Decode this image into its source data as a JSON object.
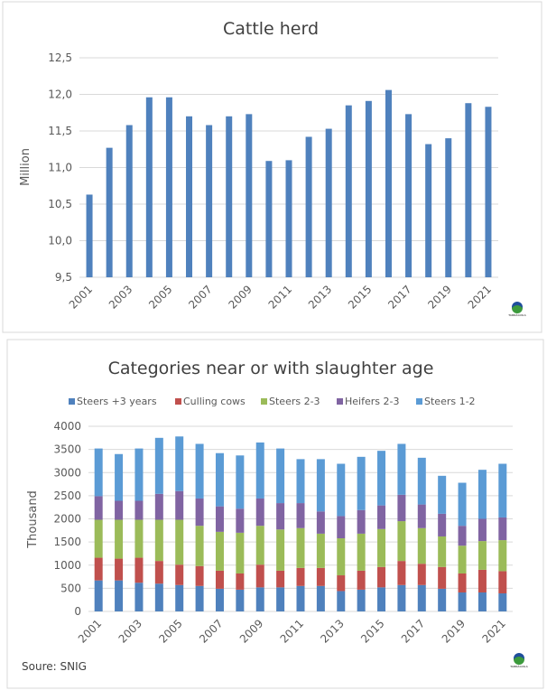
{
  "chart_data": [
    {
      "type": "bar",
      "title": "Cattle herd",
      "xlabel": "",
      "ylabel": "Million",
      "ylim": [
        9.5,
        12.5
      ],
      "yticks": [
        "9,5",
        "10,0",
        "10,5",
        "11,0",
        "11,5",
        "12,0",
        "12,5"
      ],
      "grid": true,
      "color": "#4f81bd",
      "categories": [
        2001,
        2002,
        2003,
        2004,
        2005,
        2006,
        2007,
        2008,
        2009,
        2010,
        2011,
        2012,
        2013,
        2014,
        2015,
        2016,
        2017,
        2018,
        2019,
        2020,
        2021
      ],
      "xtick_labels": [
        "2001",
        "2003",
        "2005",
        "2007",
        "2009",
        "2011",
        "2013",
        "2015",
        "2017",
        "2019",
        "2021"
      ],
      "values": [
        10.63,
        11.27,
        11.58,
        11.96,
        11.96,
        11.7,
        11.58,
        11.7,
        11.73,
        11.09,
        11.1,
        11.42,
        11.53,
        11.85,
        11.91,
        12.06,
        11.73,
        11.32,
        11.4,
        11.88,
        11.83
      ]
    },
    {
      "type": "bar",
      "stacked": true,
      "title": "Categories near or with slaughter age",
      "xlabel": "",
      "ylabel": "Thousand",
      "ylim": [
        0,
        4000
      ],
      "yticks": [
        "0",
        "500",
        "1000",
        "1500",
        "2000",
        "2500",
        "3000",
        "3500",
        "4000"
      ],
      "grid": true,
      "legend": "top",
      "categories": [
        2001,
        2002,
        2003,
        2004,
        2005,
        2006,
        2007,
        2008,
        2009,
        2010,
        2011,
        2012,
        2013,
        2014,
        2015,
        2016,
        2017,
        2018,
        2019,
        2020,
        2021
      ],
      "xtick_labels": [
        "2001",
        "2003",
        "2005",
        "2007",
        "2009",
        "2011",
        "2013",
        "2015",
        "2017",
        "2019",
        "2021"
      ],
      "series": [
        {
          "name": "Steers +3 years",
          "color": "#4f81bd",
          "values": [
            670,
            670,
            620,
            600,
            570,
            550,
            490,
            470,
            520,
            520,
            550,
            550,
            440,
            470,
            520,
            570,
            570,
            490,
            410,
            410,
            390
          ]
        },
        {
          "name": "Culling cows",
          "color": "#c0504d",
          "values": [
            490,
            470,
            540,
            490,
            440,
            430,
            390,
            350,
            490,
            360,
            390,
            390,
            340,
            410,
            440,
            520,
            460,
            470,
            410,
            490,
            480
          ]
        },
        {
          "name": "Steers 2-3",
          "color": "#9bbb59",
          "values": [
            820,
            840,
            820,
            890,
            970,
            870,
            840,
            880,
            840,
            890,
            860,
            740,
            800,
            800,
            820,
            860,
            770,
            660,
            600,
            620,
            670
          ]
        },
        {
          "name": "Heifers 2-3",
          "color": "#8064a2",
          "values": [
            510,
            410,
            410,
            560,
            620,
            590,
            550,
            520,
            590,
            570,
            540,
            480,
            480,
            510,
            510,
            570,
            510,
            490,
            430,
            480,
            490
          ]
        },
        {
          "name": "Steers 1-2",
          "color": "#5b9bd5",
          "values": [
            1030,
            1010,
            1130,
            1210,
            1180,
            1180,
            1150,
            1150,
            1210,
            1180,
            950,
            1130,
            1130,
            1150,
            1180,
            1100,
            1010,
            820,
            930,
            1060,
            1160
          ]
        }
      ]
    }
  ],
  "source": "Soure: SNIG",
  "logo": {
    "text": "TARDÁGUILA"
  }
}
